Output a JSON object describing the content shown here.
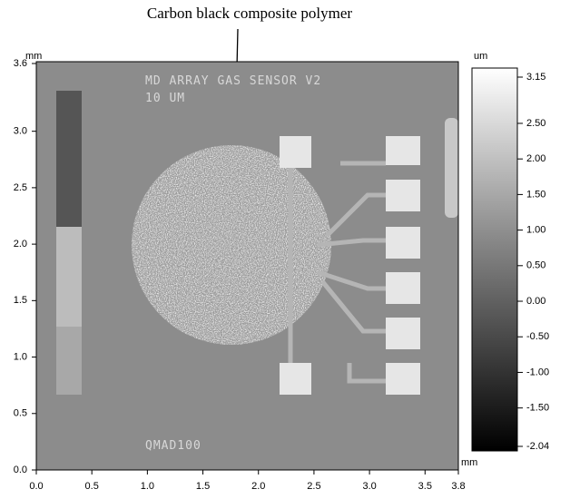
{
  "annotation": "Carbon black composite polymer",
  "image_texts": [
    "MD ARRAY GAS SENSOR V2",
    "10 UM",
    "QMAD100"
  ],
  "x_axis": {
    "unit": "mm",
    "ticks": [
      "0.0",
      "0.5",
      "1.0",
      "1.5",
      "2.0",
      "2.5",
      "3.0",
      "3.5",
      "3.8"
    ]
  },
  "y_axis": {
    "unit": "mm",
    "ticks": [
      "0.0",
      "0.5",
      "1.0",
      "1.5",
      "2.0",
      "2.5",
      "3.0",
      "3.6"
    ]
  },
  "colorbar": {
    "unit": "um",
    "ticks": [
      "3.15",
      "2.50",
      "2.00",
      "1.50",
      "1.00",
      "0.50",
      "0.00",
      "-0.50",
      "-1.00",
      "-1.50",
      "-2.04"
    ]
  }
}
